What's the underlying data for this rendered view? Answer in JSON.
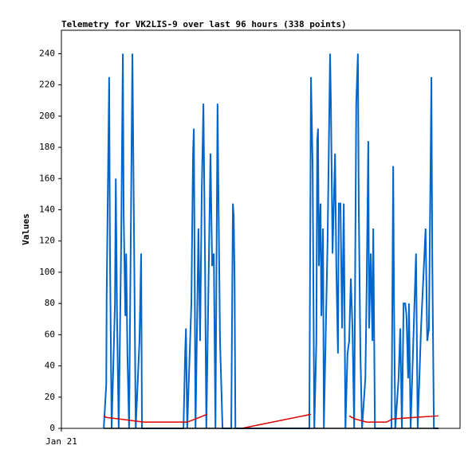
{
  "chart_data": {
    "type": "line",
    "title": "Telemetry for VK2LIS-9 over last 96 hours (338 points)",
    "ylabel": "Values",
    "xlim": [
      0,
      96
    ],
    "xticks": [
      {
        "value": 0,
        "label": "Jan 21"
      }
    ],
    "ylim": [
      0,
      255
    ],
    "yticks": [
      0,
      20,
      40,
      60,
      80,
      100,
      120,
      140,
      160,
      180,
      200,
      220,
      240
    ],
    "series": [
      {
        "color": "#0066cc",
        "x": [
          10.2,
          10.8,
          10.9,
          11.5,
          11.7,
          12.1,
          12.9,
          13.1,
          13.4,
          13.8,
          14.4,
          14.8,
          15.0,
          15.4,
          15.6,
          15.9,
          16.3,
          17.1,
          17.5,
          17.9,
          18.8,
          19.2,
          19.4,
          29.4,
          29.8,
          30.0,
          30.3,
          31.3,
          31.7,
          31.9,
          32.3,
          33.0,
          33.4,
          33.8,
          34.2,
          34.6,
          34.9,
          35.9,
          36.3,
          36.7,
          37.1,
          37.6,
          37.8,
          38.2,
          38.8,
          40.9,
          41.1,
          41.3,
          41.5,
          41.7,
          41.9,
          59.7,
          60.1,
          60.5,
          60.9,
          61.4,
          61.6,
          61.8,
          62.0,
          62.4,
          62.6,
          63.0,
          63.2,
          64.1,
          64.7,
          64.9,
          65.3,
          65.9,
          66.2,
          66.6,
          66.8,
          67.2,
          67.6,
          68.0,
          68.4,
          68.9,
          69.3,
          69.7,
          70.1,
          70.5,
          71.0,
          71.4,
          71.6,
          72.0,
          72.4,
          73.2,
          73.5,
          73.9,
          74.1,
          74.5,
          74.9,
          75.1,
          75.5,
          79.5,
          79.9,
          80.1,
          80.4,
          81.2,
          81.6,
          82.0,
          82.4,
          82.8,
          83.1,
          83.5,
          83.7,
          84.1,
          85.4,
          85.8,
          86.6,
          87.7,
          88.1,
          88.5,
          88.9,
          89.1,
          89.3,
          89.7,
          90.8
        ],
        "values": [
          0,
          28,
          85,
          225,
          112,
          0,
          80,
          160,
          72,
          0,
          120,
          240,
          136,
          72,
          112,
          48,
          0,
          240,
          120,
          0,
          56,
          112,
          0,
          0,
          48,
          64,
          0,
          80,
          176,
          192,
          0,
          128,
          56,
          152,
          208,
          104,
          0,
          176,
          104,
          112,
          0,
          208,
          156,
          56,
          0,
          0,
          72,
          144,
          136,
          96,
          0,
          0,
          225,
          168,
          0,
          56,
          184,
          192,
          104,
          144,
          72,
          128,
          0,
          120,
          240,
          208,
          112,
          176,
          104,
          48,
          144,
          144,
          64,
          144,
          0,
          48,
          56,
          96,
          64,
          0,
          208,
          240,
          144,
          48,
          0,
          32,
          88,
          184,
          64,
          112,
          56,
          128,
          0,
          0,
          168,
          80,
          0,
          32,
          64,
          0,
          80,
          80,
          72,
          32,
          80,
          0,
          112,
          0,
          64,
          128,
          56,
          64,
          168,
          225,
          112,
          0,
          0
        ]
      },
      {
        "color": "#dd0000",
        "x": [
          10.2,
          10.8,
          14.0,
          19.8,
          30.3,
          32.3,
          35.1,
          null,
          43.4,
          60.1,
          null,
          69.3,
          70.7,
          73.5,
          78.3,
          79.7,
          85.1,
          90.8
        ],
        "values": [
          8,
          7,
          6,
          4,
          4,
          6,
          9,
          null,
          0,
          9,
          null,
          8,
          6,
          4,
          4,
          6,
          7,
          8
        ]
      },
      {
        "color": "#000000",
        "x": [
          10.2,
          90.8
        ],
        "values": [
          0,
          0
        ]
      }
    ]
  }
}
